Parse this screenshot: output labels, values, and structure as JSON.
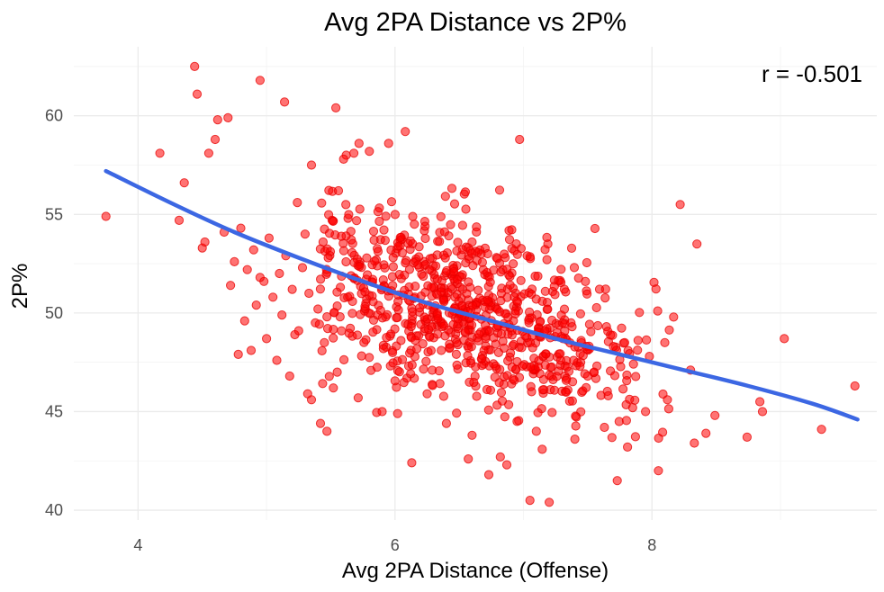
{
  "chart_data": {
    "type": "scatter",
    "title": "Avg 2PA Distance vs 2P%",
    "xlabel": "Avg 2PA Distance (Offense)",
    "ylabel": "2P%",
    "xlim": [
      3.5,
      9.75
    ],
    "ylim": [
      39.5,
      63.5
    ],
    "x_ticks": [
      4,
      6,
      8
    ],
    "y_ticks": [
      40,
      45,
      50,
      55,
      60
    ],
    "x_tick_labels": [
      "4",
      "6",
      "8"
    ],
    "y_tick_labels": [
      "40",
      "45",
      "50",
      "55",
      "60"
    ],
    "annotation": "r = -0.501",
    "grid": true,
    "point_color": "#ff0000",
    "trend_color": "#3c67e3",
    "trend_line": {
      "x": [
        3.75,
        4.25,
        4.75,
        5.25,
        5.75,
        6.25,
        6.75,
        7.25,
        7.75,
        8.25,
        8.75,
        9.25,
        9.6
      ],
      "y": [
        57.2,
        55.6,
        54.1,
        52.8,
        51.6,
        50.5,
        49.6,
        48.7,
        47.9,
        47.1,
        46.3,
        45.4,
        44.6
      ]
    },
    "points": {
      "x": [
        3.75,
        4.17,
        4.32,
        4.36,
        4.44,
        4.46,
        4.5,
        4.52,
        4.55,
        4.6,
        4.62,
        4.7,
        4.95,
        5.14,
        5.24,
        5.35,
        5.54,
        5.62,
        5.56,
        5.6,
        5.72,
        5.68,
        5.8,
        5.95,
        6.08,
        6.97,
        6.02,
        5.9,
        8.22,
        8.35,
        9.03,
        9.32,
        9.58,
        8.74,
        8.84,
        8.86,
        8.42,
        8.33,
        8.49,
        8.05,
        7.73,
        7.81,
        7.2,
        7.05,
        6.87,
        6.57,
        6.13,
        7.85,
        7.44,
        7.55,
        7.15,
        7.95,
        8.12,
        7.1,
        6.95,
        7.66,
        7.29,
        7.5,
        7.7,
        6.4,
        6.6,
        6.25,
        8.1,
        8.3,
        7.98,
        7.37,
        6.82,
        7.63,
        7.4,
        6.73,
        4.8,
        4.67,
        4.75,
        4.9,
        5.02,
        5.1,
        4.72,
        4.85,
        4.98,
        5.05,
        5.2,
        5.15,
        4.92,
        4.83,
        5.28,
        5.33,
        5.4,
        5.44,
        5.48,
        5.38,
        5.22,
        5.3,
        5.12,
        5.0,
        4.88,
        5.25,
        5.08,
        5.18,
        4.78,
        5.35,
        4.95,
        5.45,
        5.55,
        5.52,
        5.42,
        5.32,
        5.47
      ],
      "y": [
        54.9,
        58.1,
        54.7,
        56.6,
        62.5,
        61.1,
        53.3,
        53.6,
        58.1,
        58.8,
        59.8,
        59.9,
        61.8,
        60.7,
        55.6,
        57.5,
        60.4,
        58.0,
        56.2,
        57.8,
        58.6,
        58.1,
        58.2,
        58.6,
        59.2,
        58.8,
        44.9,
        45.0,
        55.5,
        53.5,
        48.7,
        44.1,
        46.3,
        43.7,
        45.5,
        45.0,
        43.9,
        43.4,
        44.8,
        42.0,
        41.5,
        43.2,
        40.4,
        40.5,
        42.3,
        42.6,
        42.4,
        45.2,
        47.3,
        47.0,
        46.1,
        45.0,
        45.6,
        44.0,
        44.5,
        45.8,
        47.6,
        46.8,
        48.3,
        44.4,
        43.8,
        45.9,
        48.5,
        47.1,
        47.8,
        49.5,
        42.7,
        44.2,
        43.6,
        41.8,
        54.3,
        54.1,
        52.6,
        53.2,
        53.8,
        52.0,
        51.4,
        52.2,
        51.6,
        50.8,
        51.2,
        52.9,
        50.4,
        49.6,
        52.3,
        51.0,
        50.2,
        53.6,
        52.8,
        49.5,
        48.9,
        54.0,
        49.9,
        48.7,
        48.1,
        49.1,
        47.6,
        46.8,
        47.9,
        45.6,
        51.8,
        48.5,
        47.0,
        46.2,
        44.4,
        45.9,
        44.0
      ]
    },
    "cloud": {
      "count": 820,
      "center_x": 6.55,
      "center_y": 50.2,
      "sd_x": 0.72,
      "slope": -1.73,
      "sd_resid": 2.3,
      "x_range": [
        5.4,
        8.2
      ],
      "y_range": [
        43.0,
        56.5
      ]
    }
  }
}
